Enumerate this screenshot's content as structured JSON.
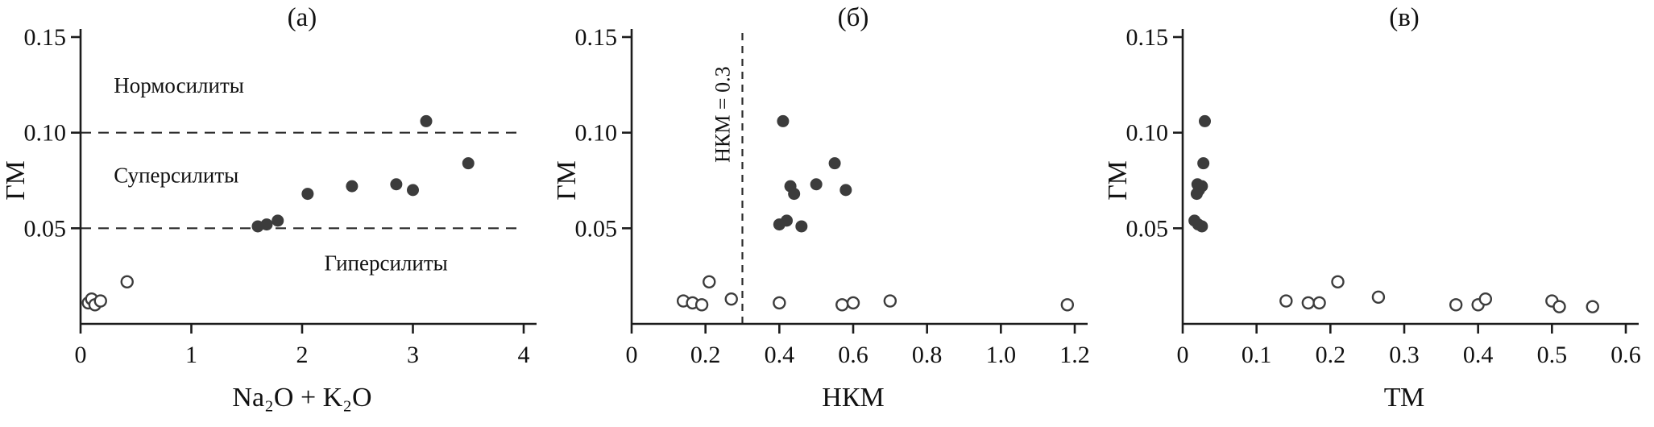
{
  "colors": {
    "axis": "#1c1c1c",
    "text": "#111111",
    "point": "#3c3c3c",
    "open_fill": "#ffffff",
    "dash": "#2a2a2a"
  },
  "chart_data": [
    {
      "type": "scatter",
      "panel_label": "(а)",
      "xlabel": "Na₂O + K₂O",
      "ylabel": "ГМ",
      "xlim": [
        0,
        4
      ],
      "ylim": [
        0,
        0.15
      ],
      "xticks": [
        {
          "v": 0,
          "label": "0"
        },
        {
          "v": 1,
          "label": "1"
        },
        {
          "v": 2,
          "label": "2"
        },
        {
          "v": 3,
          "label": "3"
        },
        {
          "v": 4,
          "label": "4"
        }
      ],
      "yticks": [
        {
          "v": 0.05,
          "label": "0.05"
        },
        {
          "v": 0.1,
          "label": "0.10"
        },
        {
          "v": 0.15,
          "label": "0.15"
        }
      ],
      "hlines": [
        {
          "y": 0.1
        },
        {
          "y": 0.05
        }
      ],
      "annotations": [
        {
          "text": "Нормосилиты",
          "x": 0.3,
          "y": 0.121
        },
        {
          "text": "Суперсилиты",
          "x": 0.3,
          "y": 0.074
        },
        {
          "text": "Гиперсилиты",
          "x": 2.2,
          "y": 0.028
        }
      ],
      "series": [
        {
          "name": "filled-circles",
          "marker": "filled",
          "points": [
            [
              1.6,
              0.051
            ],
            [
              1.68,
              0.052
            ],
            [
              1.78,
              0.054
            ],
            [
              2.05,
              0.068
            ],
            [
              2.45,
              0.072
            ],
            [
              2.85,
              0.073
            ],
            [
              3.0,
              0.07
            ],
            [
              3.12,
              0.106
            ],
            [
              3.5,
              0.084
            ]
          ]
        },
        {
          "name": "open-circles",
          "marker": "open",
          "points": [
            [
              0.07,
              0.011
            ],
            [
              0.1,
              0.013
            ],
            [
              0.13,
              0.01
            ],
            [
              0.18,
              0.012
            ],
            [
              0.42,
              0.022
            ]
          ]
        }
      ]
    },
    {
      "type": "scatter",
      "panel_label": "(б)",
      "xlabel": "НКМ",
      "ylabel": "ГМ",
      "xlim": [
        0,
        1.2
      ],
      "ylim": [
        0,
        0.15
      ],
      "xticks": [
        {
          "v": 0,
          "label": "0"
        },
        {
          "v": 0.2,
          "label": "0.2"
        },
        {
          "v": 0.4,
          "label": "0.4"
        },
        {
          "v": 0.6,
          "label": "0.6"
        },
        {
          "v": 0.8,
          "label": "0.8"
        },
        {
          "v": 1.0,
          "label": "1.0"
        },
        {
          "v": 1.2,
          "label": "1.2"
        }
      ],
      "yticks": [
        {
          "v": 0.05,
          "label": "0.05"
        },
        {
          "v": 0.1,
          "label": "0.10"
        },
        {
          "v": 0.15,
          "label": "0.15"
        }
      ],
      "vlines": [
        {
          "x": 0.3,
          "label": "НКМ = 0.3"
        }
      ],
      "series": [
        {
          "name": "filled-circles",
          "marker": "filled",
          "points": [
            [
              0.41,
              0.106
            ],
            [
              0.55,
              0.084
            ],
            [
              0.5,
              0.073
            ],
            [
              0.43,
              0.072
            ],
            [
              0.44,
              0.068
            ],
            [
              0.58,
              0.07
            ],
            [
              0.42,
              0.054
            ],
            [
              0.4,
              0.052
            ],
            [
              0.46,
              0.051
            ]
          ]
        },
        {
          "name": "open-circles",
          "marker": "open",
          "points": [
            [
              0.14,
              0.012
            ],
            [
              0.165,
              0.011
            ],
            [
              0.19,
              0.01
            ],
            [
              0.21,
              0.022
            ],
            [
              0.27,
              0.013
            ],
            [
              0.4,
              0.011
            ],
            [
              0.57,
              0.01
            ],
            [
              0.6,
              0.011
            ],
            [
              0.7,
              0.012
            ],
            [
              1.18,
              0.01
            ]
          ]
        }
      ]
    },
    {
      "type": "scatter",
      "panel_label": "(в)",
      "xlabel": "ТМ",
      "ylabel": "ГМ",
      "xlim": [
        0,
        0.6
      ],
      "ylim": [
        0,
        0.15
      ],
      "xticks": [
        {
          "v": 0,
          "label": "0"
        },
        {
          "v": 0.1,
          "label": "0.1"
        },
        {
          "v": 0.2,
          "label": "0.2"
        },
        {
          "v": 0.3,
          "label": "0.3"
        },
        {
          "v": 0.4,
          "label": "0.4"
        },
        {
          "v": 0.5,
          "label": "0.5"
        },
        {
          "v": 0.6,
          "label": "0.6"
        }
      ],
      "yticks": [
        {
          "v": 0.05,
          "label": "0.05"
        },
        {
          "v": 0.1,
          "label": "0.10"
        },
        {
          "v": 0.15,
          "label": "0.15"
        }
      ],
      "series": [
        {
          "name": "filled-circles",
          "marker": "filled",
          "points": [
            [
              0.03,
              0.106
            ],
            [
              0.028,
              0.084
            ],
            [
              0.02,
              0.073
            ],
            [
              0.026,
              0.072
            ],
            [
              0.022,
              0.07
            ],
            [
              0.019,
              0.068
            ],
            [
              0.016,
              0.054
            ],
            [
              0.021,
              0.052
            ],
            [
              0.026,
              0.051
            ]
          ]
        },
        {
          "name": "open-circles",
          "marker": "open",
          "points": [
            [
              0.14,
              0.012
            ],
            [
              0.17,
              0.011
            ],
            [
              0.185,
              0.011
            ],
            [
              0.21,
              0.022
            ],
            [
              0.265,
              0.014
            ],
            [
              0.37,
              0.01
            ],
            [
              0.4,
              0.01
            ],
            [
              0.41,
              0.013
            ],
            [
              0.5,
              0.012
            ],
            [
              0.51,
              0.009
            ],
            [
              0.555,
              0.009
            ]
          ]
        }
      ]
    }
  ]
}
